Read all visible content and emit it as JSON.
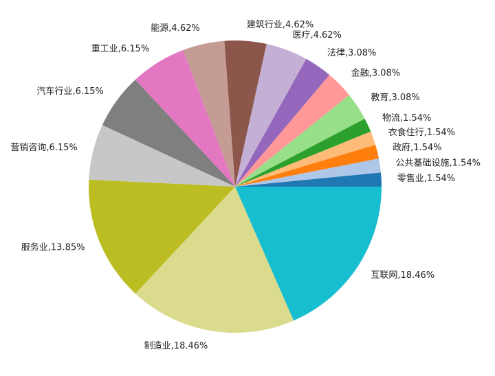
{
  "chart_data": {
    "type": "pie",
    "title": "",
    "start_angle_deg": 0,
    "direction": "counterclockwise",
    "slices": [
      {
        "label": "零售业",
        "value": 1.54,
        "display": "零售业,1.54%",
        "color": "#1f77b4"
      },
      {
        "label": "公共基础设施",
        "value": 1.54,
        "display": "公共基础设施,1.54%",
        "color": "#aec7e8"
      },
      {
        "label": "政府",
        "value": 1.54,
        "display": "政府,1.54%",
        "color": "#ff7f0e"
      },
      {
        "label": "衣食住行",
        "value": 1.54,
        "display": "衣食住行,1.54%",
        "color": "#ffbb78"
      },
      {
        "label": "物流",
        "value": 1.54,
        "display": "物流,1.54%",
        "color": "#2ca02c"
      },
      {
        "label": "教育",
        "value": 3.08,
        "display": "教育,3.08%",
        "color": "#98df8a"
      },
      {
        "label": "金融",
        "value": 3.08,
        "display": "金融,3.08%",
        "color": "#ff9896"
      },
      {
        "label": "法律",
        "value": 3.08,
        "display": "法律,3.08%",
        "color": "#9467bd"
      },
      {
        "label": "医疗",
        "value": 4.62,
        "display": "医疗,4.62%",
        "color": "#c5b0d5"
      },
      {
        "label": "建筑行业",
        "value": 4.62,
        "display": "建筑行业,4.62%",
        "color": "#8c564b"
      },
      {
        "label": "能源",
        "value": 4.62,
        "display": "能源,4.62%",
        "color": "#c49c94"
      },
      {
        "label": "重工业",
        "value": 6.15,
        "display": "重工业,6.15%",
        "color": "#e377c2"
      },
      {
        "label": "汽车行业",
        "value": 6.15,
        "display": "汽车行业,6.15%",
        "color": "#7f7f7f"
      },
      {
        "label": "营销咨询",
        "value": 6.15,
        "display": "营销咨询,6.15%",
        "color": "#c7c7c7"
      },
      {
        "label": "服务业",
        "value": 13.85,
        "display": "服务业,13.85%",
        "color": "#bcbd22"
      },
      {
        "label": "制造业",
        "value": 18.46,
        "display": "制造业,18.46%",
        "color": "#dbdb8d"
      },
      {
        "label": "互联网",
        "value": 18.46,
        "display": "互联网,18.46%",
        "color": "#17becf"
      }
    ]
  }
}
